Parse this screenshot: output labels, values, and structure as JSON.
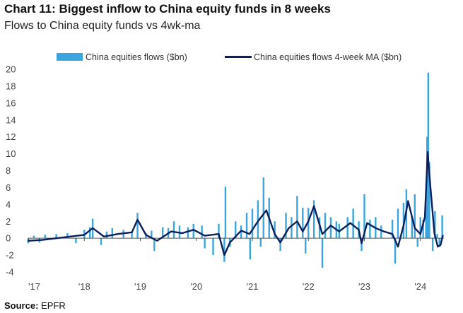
{
  "header": {
    "title": "Chart 11: Biggest inflow to China equity funds in 8 weeks",
    "subtitle": "Flows to China equity funds vs 4wk-ma"
  },
  "source": {
    "label": "Source:",
    "text": "EPFR"
  },
  "colors": {
    "bars": "#3aa6dd",
    "line": "#0a1f5c",
    "axis": "#555555"
  },
  "chart_data": {
    "type": "bar",
    "grid": false,
    "legend_position": "top-center",
    "ylim": [
      -4,
      20
    ],
    "yticks": [
      "20",
      "18",
      "16",
      "14",
      "12",
      "10",
      "8",
      "6",
      "4",
      "2",
      "0",
      "-2",
      "-4"
    ],
    "ytick_values": [
      20,
      18,
      16,
      14,
      12,
      10,
      8,
      6,
      4,
      2,
      0,
      -2,
      -4
    ],
    "xticks": [
      "'17",
      "'18",
      "'19",
      "'20",
      "'21",
      "'22",
      "'23",
      "'24"
    ],
    "xtick_years": [
      2017,
      2018,
      2019,
      2020,
      2021,
      2022,
      2023,
      2024
    ],
    "x_range_years": [
      2017,
      2024.42
    ],
    "series": [
      {
        "name": "China equities flows ($bn)",
        "kind": "bar",
        "points": [
          [
            2017.0,
            -0.6
          ],
          [
            2017.1,
            0.3
          ],
          [
            2017.2,
            -0.5
          ],
          [
            2017.3,
            0.4
          ],
          [
            2017.5,
            0.5
          ],
          [
            2017.7,
            0.6
          ],
          [
            2017.85,
            -0.6
          ],
          [
            2018.0,
            1.0
          ],
          [
            2018.1,
            1.3
          ],
          [
            2018.15,
            2.3
          ],
          [
            2018.3,
            -0.8
          ],
          [
            2018.4,
            0.8
          ],
          [
            2018.5,
            1.2
          ],
          [
            2018.7,
            1.0
          ],
          [
            2018.85,
            0.8
          ],
          [
            2018.95,
            3.0
          ],
          [
            2019.1,
            0.6
          ],
          [
            2019.2,
            0.9
          ],
          [
            2019.25,
            -1.5
          ],
          [
            2019.4,
            1.3
          ],
          [
            2019.5,
            1.2
          ],
          [
            2019.6,
            2.0
          ],
          [
            2019.7,
            1.5
          ],
          [
            2019.85,
            1.3
          ],
          [
            2019.95,
            1.7
          ],
          [
            2020.1,
            1.5
          ],
          [
            2020.15,
            -1.2
          ],
          [
            2020.3,
            -2.0
          ],
          [
            2020.4,
            1.7
          ],
          [
            2020.5,
            -2.8
          ],
          [
            2020.52,
            6.1
          ],
          [
            2020.6,
            -1.0
          ],
          [
            2020.7,
            2.0
          ],
          [
            2020.8,
            1.5
          ],
          [
            2020.9,
            3.0
          ],
          [
            2020.96,
            -2.5
          ],
          [
            2021.0,
            3.5
          ],
          [
            2021.1,
            4.5
          ],
          [
            2021.15,
            -1.0
          ],
          [
            2021.2,
            7.2
          ],
          [
            2021.3,
            4.8
          ],
          [
            2021.4,
            2.0
          ],
          [
            2021.5,
            -1.5
          ],
          [
            2021.6,
            3.0
          ],
          [
            2021.7,
            2.5
          ],
          [
            2021.8,
            5.0
          ],
          [
            2021.9,
            3.6
          ],
          [
            2021.95,
            -1.8
          ],
          [
            2022.0,
            3.6
          ],
          [
            2022.1,
            4.5
          ],
          [
            2022.2,
            2.5
          ],
          [
            2022.25,
            -3.5
          ],
          [
            2022.3,
            3.0
          ],
          [
            2022.4,
            2.5
          ],
          [
            2022.5,
            2.0
          ],
          [
            2022.55,
            1.7
          ],
          [
            2022.7,
            2.5
          ],
          [
            2022.8,
            3.5
          ],
          [
            2022.9,
            2.0
          ],
          [
            2022.95,
            -1.5
          ],
          [
            2023.0,
            5.2
          ],
          [
            2023.1,
            2.2
          ],
          [
            2023.2,
            2.5
          ],
          [
            2023.3,
            1.5
          ],
          [
            2023.5,
            2.2
          ],
          [
            2023.55,
            -3.0
          ],
          [
            2023.6,
            3.5
          ],
          [
            2023.7,
            4.2
          ],
          [
            2023.75,
            5.8
          ],
          [
            2023.85,
            2.5
          ],
          [
            2023.9,
            5.2
          ],
          [
            2023.95,
            -1.0
          ],
          [
            2024.0,
            2.5
          ],
          [
            2024.05,
            2.2
          ],
          [
            2024.1,
            4.0
          ],
          [
            2024.12,
            12.0
          ],
          [
            2024.14,
            19.6
          ],
          [
            2024.16,
            9.0
          ],
          [
            2024.22,
            -1.5
          ],
          [
            2024.26,
            3.2
          ],
          [
            2024.3,
            0.5
          ],
          [
            2024.34,
            -1.0
          ],
          [
            2024.39,
            2.7
          ]
        ]
      },
      {
        "name": "China equities flows 4-week MA ($bn)",
        "kind": "line",
        "points": [
          [
            2017.0,
            -0.3
          ],
          [
            2017.25,
            -0.2
          ],
          [
            2017.5,
            0.0
          ],
          [
            2017.75,
            0.2
          ],
          [
            2018.0,
            0.4
          ],
          [
            2018.15,
            1.2
          ],
          [
            2018.35,
            0.2
          ],
          [
            2018.6,
            0.5
          ],
          [
            2018.85,
            0.7
          ],
          [
            2018.95,
            2.2
          ],
          [
            2019.1,
            0.4
          ],
          [
            2019.3,
            -0.3
          ],
          [
            2019.55,
            0.8
          ],
          [
            2019.75,
            0.6
          ],
          [
            2019.95,
            1.0
          ],
          [
            2020.15,
            0.3
          ],
          [
            2020.4,
            0.5
          ],
          [
            2020.5,
            -2.0
          ],
          [
            2020.6,
            -0.5
          ],
          [
            2020.8,
            0.9
          ],
          [
            2020.95,
            0.5
          ],
          [
            2021.1,
            2.0
          ],
          [
            2021.25,
            3.3
          ],
          [
            2021.4,
            0.5
          ],
          [
            2021.5,
            -0.5
          ],
          [
            2021.65,
            1.2
          ],
          [
            2021.8,
            2.0
          ],
          [
            2021.9,
            0.8
          ],
          [
            2022.0,
            2.0
          ],
          [
            2022.1,
            3.8
          ],
          [
            2022.25,
            0.5
          ],
          [
            2022.4,
            1.5
          ],
          [
            2022.55,
            0.8
          ],
          [
            2022.75,
            1.8
          ],
          [
            2022.9,
            1.0
          ],
          [
            2022.95,
            -0.6
          ],
          [
            2023.05,
            1.8
          ],
          [
            2023.2,
            1.2
          ],
          [
            2023.35,
            0.8
          ],
          [
            2023.5,
            0.5
          ],
          [
            2023.6,
            -1.0
          ],
          [
            2023.7,
            1.5
          ],
          [
            2023.78,
            4.4
          ],
          [
            2023.9,
            1.2
          ],
          [
            2024.0,
            0.5
          ],
          [
            2024.08,
            2.5
          ],
          [
            2024.13,
            10.2
          ],
          [
            2024.18,
            6.0
          ],
          [
            2024.25,
            0.6
          ],
          [
            2024.31,
            -1.0
          ],
          [
            2024.36,
            -0.8
          ],
          [
            2024.4,
            0.3
          ]
        ]
      }
    ]
  }
}
